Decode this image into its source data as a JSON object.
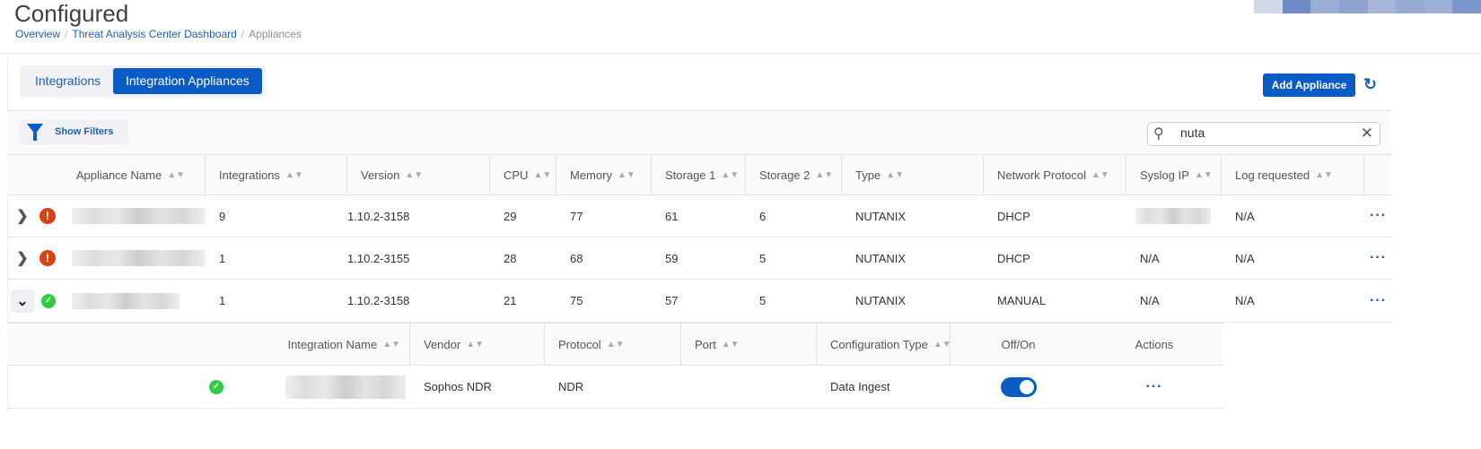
{
  "page": {
    "title": "Configured",
    "breadcrumb": [
      "Overview",
      "Threat Analysis Center Dashboard",
      "Appliances"
    ]
  },
  "tabs": [
    {
      "label": "Integrations",
      "active": false
    },
    {
      "label": "Integration Appliances",
      "active": true
    }
  ],
  "toolbar": {
    "add_label": "Add Appliance",
    "filters_label": "Show Filters",
    "search_value": "nuta"
  },
  "colors": {
    "accent": "#0a5bc4",
    "error": "#d84315",
    "success": "#2ecc40"
  },
  "table": {
    "headers": [
      "Appliance Name",
      "Integrations",
      "Version",
      "CPU",
      "Memory",
      "Storage 1",
      "Storage 2",
      "Type",
      "Network Protocol",
      "Syslog IP",
      "Log requested"
    ],
    "rows": [
      {
        "status": "error",
        "expanded": false,
        "integrations": "9",
        "version": "1.10.2-3158",
        "cpu": "29",
        "memory": "77",
        "storage1": "61",
        "storage2": "6",
        "type": "NUTANIX",
        "protocol": "DHCP",
        "syslog": "",
        "log": "N/A"
      },
      {
        "status": "error",
        "expanded": false,
        "integrations": "1",
        "version": "1.10.2-3155",
        "cpu": "28",
        "memory": "68",
        "storage1": "59",
        "storage2": "5",
        "type": "NUTANIX",
        "protocol": "DHCP",
        "syslog": "N/A",
        "log": "N/A"
      },
      {
        "status": "ok",
        "expanded": true,
        "integrations": "1",
        "version": "1.10.2-3158",
        "cpu": "21",
        "memory": "75",
        "storage1": "57",
        "storage2": "5",
        "type": "NUTANIX",
        "protocol": "MANUAL",
        "syslog": "N/A",
        "log": "N/A"
      }
    ]
  },
  "subtable": {
    "headers": [
      "Integration Name",
      "Vendor",
      "Protocol",
      "Port",
      "Configuration Type",
      "Off/On",
      "Actions"
    ],
    "rows": [
      {
        "status": "ok",
        "vendor": "Sophos NDR",
        "protocol": "NDR",
        "port": "",
        "config_type": "Data Ingest",
        "enabled": true
      }
    ]
  }
}
